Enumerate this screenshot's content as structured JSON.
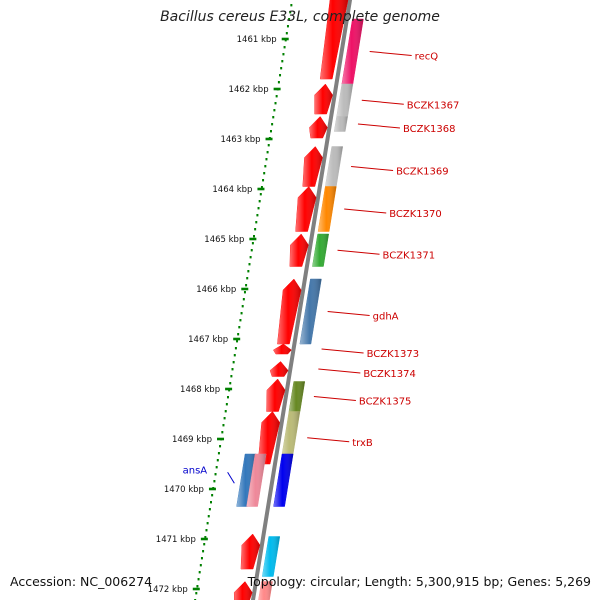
{
  "title": "Bacillus cereus E33L, complete genome",
  "footer": {
    "accession": "Accession: NC_006274",
    "summary": "Topology: circular; Length: 5,300,915 bp; Genes: 5,269"
  },
  "colors": {
    "background": "#ffffff",
    "backbone": "#808080",
    "tick": "#008000",
    "label_red": "#cc0000",
    "label_blue": "#0000cc"
  },
  "scale": {
    "unit": "kbp",
    "ticks": [
      "1461 kbp",
      "1462 kbp",
      "1463 kbp",
      "1464 kbp",
      "1465 kbp",
      "1466 kbp",
      "1467 kbp",
      "1468 kbp",
      "1469 kbp",
      "1470 kbp",
      "1471 kbp",
      "1472 kbp"
    ]
  },
  "genes": [
    {
      "label": "recQ",
      "start_kbp": 1460.6,
      "end_kbp": 1461.9,
      "color": "#ee1166",
      "strand": "plus"
    },
    {
      "label": "BCZK1367",
      "start_kbp": 1461.9,
      "end_kbp": 1462.55,
      "color": "#bbbbbb",
      "strand": "plus"
    },
    {
      "label": "BCZK1368",
      "start_kbp": 1462.55,
      "end_kbp": 1462.85,
      "color": "#bbbbbb",
      "strand": "plus"
    },
    {
      "label": "BCZK1369",
      "start_kbp": 1463.15,
      "end_kbp": 1463.95,
      "color": "#bbbbbb",
      "strand": "plus"
    },
    {
      "label": "BCZK1370",
      "start_kbp": 1463.95,
      "end_kbp": 1464.85,
      "color": "#ff8800",
      "strand": "plus"
    },
    {
      "label": "BCZK1371",
      "start_kbp": 1464.9,
      "end_kbp": 1465.55,
      "color": "#33aa33",
      "strand": "plus"
    },
    {
      "label": "gdhA",
      "start_kbp": 1465.8,
      "end_kbp": 1467.1,
      "color": "#4477aa",
      "strand": "plus"
    },
    {
      "label": "BCZK1373",
      "start_kbp": 1467.1,
      "end_kbp": 1467.3,
      "color": "#ff0000",
      "strand": "minus"
    },
    {
      "label": "BCZK1374",
      "start_kbp": 1467.45,
      "end_kbp": 1467.75,
      "color": "#ff0000",
      "strand": "minus"
    },
    {
      "label": "BCZK1375",
      "start_kbp": 1467.85,
      "end_kbp": 1468.45,
      "color": "#668822",
      "strand": "plus"
    },
    {
      "label": "trxB",
      "start_kbp": 1468.45,
      "end_kbp": 1469.5,
      "color": "#bbbb77",
      "strand": "plus"
    },
    {
      "label": "ansA",
      "start_kbp": 1469.3,
      "end_kbp": 1470.35,
      "color": "#0000ee",
      "strand": "plus"
    }
  ],
  "unlabeled_features": [
    {
      "start_kbp": 1460.0,
      "end_kbp": 1461.8,
      "color": "#ff0000",
      "strand": "minus",
      "track": "cds"
    },
    {
      "start_kbp": 1461.9,
      "end_kbp": 1462.5,
      "color": "#ff0000",
      "strand": "minus",
      "track": "cds"
    },
    {
      "start_kbp": 1462.55,
      "end_kbp": 1462.98,
      "color": "#ff0000",
      "strand": "minus",
      "track": "cds"
    },
    {
      "start_kbp": 1463.15,
      "end_kbp": 1463.95,
      "color": "#ff0000",
      "strand": "minus",
      "track": "cds"
    },
    {
      "start_kbp": 1463.95,
      "end_kbp": 1464.85,
      "color": "#ff0000",
      "strand": "minus",
      "track": "cds"
    },
    {
      "start_kbp": 1464.9,
      "end_kbp": 1465.55,
      "color": "#ff0000",
      "strand": "minus",
      "track": "cds"
    },
    {
      "start_kbp": 1465.8,
      "end_kbp": 1467.1,
      "color": "#ff0000",
      "strand": "minus",
      "track": "cds"
    },
    {
      "start_kbp": 1467.8,
      "end_kbp": 1468.45,
      "color": "#ff0000",
      "strand": "minus",
      "track": "cds"
    },
    {
      "start_kbp": 1468.45,
      "end_kbp": 1469.5,
      "color": "#ff0000",
      "strand": "minus",
      "track": "cds"
    },
    {
      "start_kbp": 1469.3,
      "end_kbp": 1470.35,
      "color": "#3377bb",
      "strand": "plus",
      "track": "extra"
    },
    {
      "start_kbp": 1469.3,
      "end_kbp": 1470.35,
      "color": "#ee8899",
      "strand": "plus",
      "track": "extra2"
    },
    {
      "start_kbp": 1470.9,
      "end_kbp": 1471.6,
      "color": "#ff0000",
      "strand": "minus",
      "track": "cds"
    },
    {
      "start_kbp": 1470.95,
      "end_kbp": 1471.75,
      "color": "#00bbee",
      "strand": "plus",
      "track": "gene"
    },
    {
      "start_kbp": 1471.85,
      "end_kbp": 1472.4,
      "color": "#ff0000",
      "strand": "minus",
      "track": "cds"
    },
    {
      "start_kbp": 1471.85,
      "end_kbp": 1472.4,
      "color": "#ff8888",
      "strand": "plus",
      "track": "gene"
    }
  ]
}
